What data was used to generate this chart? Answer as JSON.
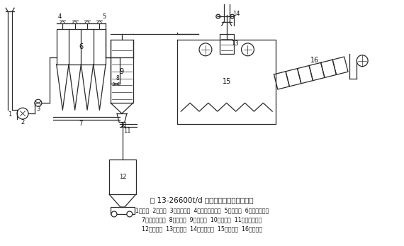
{
  "title": "图 13-26600t/d 石灰回转窑除尘工艺流程",
  "caption_line1": "1一烟囱  2一风机  3一调节挡板  4一逆洗控制挡板  5一切换阀  6一袋式除尘器",
  "caption_line2": "7一链式输送机  8一冷风阀  9一空冷器  10一旁通阀  11一链式输送机",
  "caption_line3": "12一粉尘仓  13一旁通阀  14一辅助烟囱  15一预热机  16一回转窑",
  "bg_color": "#ffffff",
  "line_color": "#2a2a2a",
  "text_color": "#111111"
}
